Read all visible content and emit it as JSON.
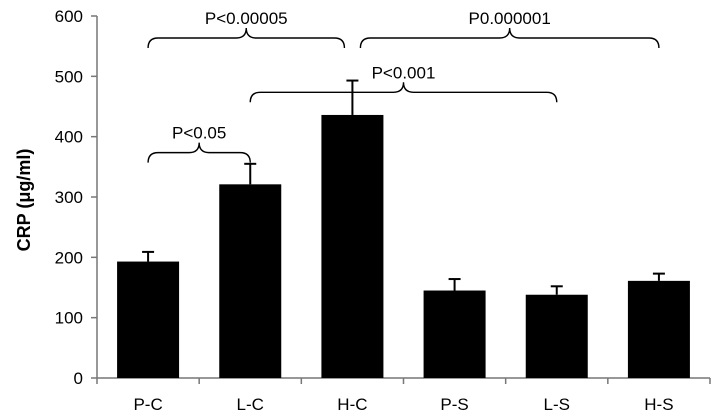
{
  "chart_data": {
    "type": "bar",
    "categories": [
      "P-C",
      "L-C",
      "H-C",
      "P-S",
      "L-S",
      "H-S"
    ],
    "values": [
      193,
      321,
      436,
      145,
      138,
      161
    ],
    "errors": [
      16,
      34,
      57,
      19,
      14,
      12
    ],
    "xlabel": "",
    "ylabel": "CRP (μg/ml)",
    "ylim": [
      0,
      600
    ],
    "yticks": [
      0,
      100,
      200,
      300,
      400,
      500,
      600
    ],
    "grid": false,
    "bar_color": "#000000",
    "annotations": [
      {
        "text": "P<0.00005",
        "from": "P-C",
        "to": "H-C",
        "level": 600
      },
      {
        "text": "P0.000001",
        "from": "H-C",
        "to": "H-S",
        "level": 600
      },
      {
        "text": "P<0.001",
        "from": "L-C",
        "to": "L-S",
        "level": 510
      },
      {
        "text": "P<0.05",
        "from": "P-C",
        "to": "L-C",
        "level": 410
      }
    ]
  }
}
